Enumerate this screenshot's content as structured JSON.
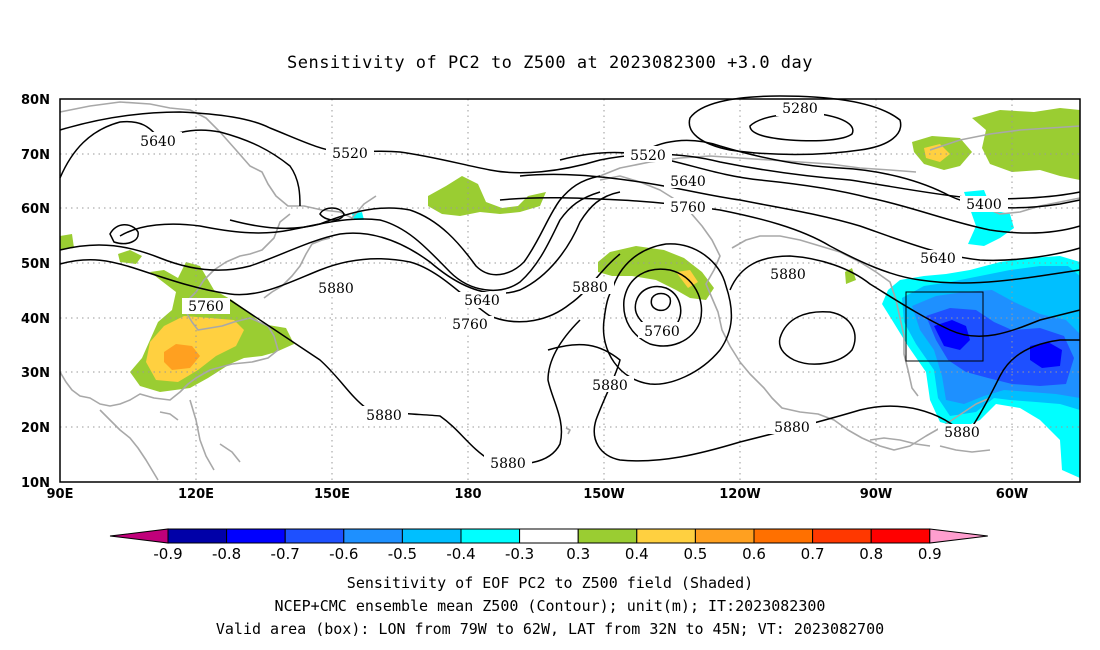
{
  "title": "Sensitivity of PC2 to Z500 at 2023082300 +3.0 day",
  "map": {
    "lat_labels": [
      "80N",
      "70N",
      "60N",
      "50N",
      "40N",
      "30N",
      "20N",
      "10N"
    ],
    "lon_labels": [
      "90E",
      "120E",
      "150E",
      "180",
      "150W",
      "120W",
      "90W",
      "60W"
    ],
    "lat_range": [
      10,
      80
    ],
    "lon_range_degE": [
      90,
      315
    ],
    "valid_box": {
      "lon_w": -79,
      "lon_e": -62,
      "lat_s": 32,
      "lat_n": 45
    },
    "contour_labels": [
      "5640",
      "5520",
      "5280",
      "5520",
      "5640",
      "5760",
      "5400",
      "5640",
      "5880",
      "5760",
      "5880",
      "5640",
      "5760",
      "5880",
      "5760",
      "5880",
      "5880",
      "5880",
      "5880",
      "5880"
    ]
  },
  "colorbar": {
    "labels": [
      "-0.9",
      "-0.8",
      "-0.7",
      "-0.6",
      "-0.5",
      "-0.4",
      "-0.3",
      "0.3",
      "0.4",
      "0.5",
      "0.6",
      "0.7",
      "0.8",
      "0.9"
    ],
    "colors": [
      "#c0007a",
      "#0000a8",
      "#0000ff",
      "#1e50ff",
      "#1e90ff",
      "#00bfff",
      "#00ffff",
      "#ffffff",
      "#9acd32",
      "#ffd040",
      "#ffa020",
      "#ff7000",
      "#ff3800",
      "#ff0000",
      "#ff9ecf"
    ]
  },
  "caption": {
    "line1": "Sensitivity of EOF PC2 to Z500 field (Shaded)",
    "line2": "NCEP+CMC ensemble mean Z500 (Contour); unit(m); IT:2023082300",
    "line3": "Valid area (box): LON from 79W to 62W, LAT from 32N to 45N; VT: 2023082700"
  }
}
